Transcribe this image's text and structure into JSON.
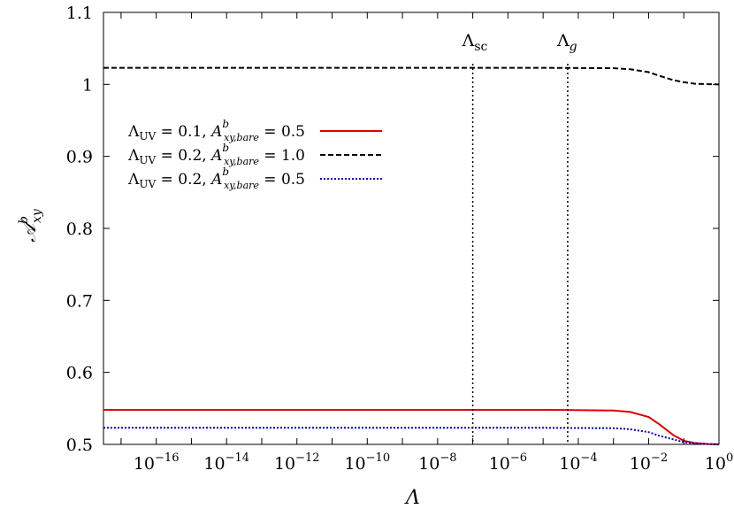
{
  "chart_data": {
    "type": "line",
    "xlabel": "Λ",
    "ylabel": "𝒜ᵇxy",
    "x_scale": "log",
    "xlim": [
      3.16e-18,
      1
    ],
    "ylim": [
      0.5,
      1.1
    ],
    "x_ticks": [
      {
        "base": "10",
        "exp": "−16"
      },
      {
        "base": "10",
        "exp": "−14"
      },
      {
        "base": "10",
        "exp": "−12"
      },
      {
        "base": "10",
        "exp": "−10"
      },
      {
        "base": "10",
        "exp": "−8"
      },
      {
        "base": "10",
        "exp": "−6"
      },
      {
        "base": "10",
        "exp": "−4"
      },
      {
        "base": "10",
        "exp": "−2"
      },
      {
        "base": "10",
        "exp": "0"
      }
    ],
    "y_ticks": [
      "0.5",
      "0.6",
      "0.7",
      "0.8",
      "0.9",
      "1",
      "1.1"
    ],
    "grid": false,
    "legend_position": "middle-left",
    "vertical_lines": [
      {
        "x": 1e-07,
        "label": "Λsc"
      },
      {
        "x": 5e-05,
        "label": "Λg"
      }
    ],
    "series": [
      {
        "name": "ΛUV = 0.1, Aᵇxy,bare = 0.5",
        "color": "#e00000",
        "dash": "solid",
        "x": [
          3.16e-18,
          1e-16,
          1e-12,
          1e-08,
          1e-05,
          0.001,
          0.003,
          0.01,
          0.02,
          0.05,
          0.1,
          0.2,
          0.5,
          1
        ],
        "y": [
          0.548,
          0.548,
          0.548,
          0.548,
          0.548,
          0.547,
          0.545,
          0.538,
          0.528,
          0.513,
          0.505,
          0.502,
          0.5005,
          0.5
        ]
      },
      {
        "name": "ΛUV = 0.2, Aᵇxy,bare = 1.0",
        "color": "#000000",
        "dash": "dashed",
        "x": [
          3.16e-18,
          1e-16,
          1e-12,
          1e-08,
          1e-05,
          0.001,
          0.003,
          0.01,
          0.02,
          0.05,
          0.1,
          0.2,
          0.5,
          1
        ],
        "y": [
          1.023,
          1.023,
          1.023,
          1.023,
          1.023,
          1.0225,
          1.021,
          1.017,
          1.012,
          1.006,
          1.003,
          1.001,
          1.0003,
          1.0
        ]
      },
      {
        "name": "ΛUV = 0.2, Aᵇxy,bare = 0.5",
        "color": "#0000cc",
        "dash": "dotted",
        "x": [
          3.16e-18,
          1e-16,
          1e-12,
          1e-08,
          1e-05,
          0.001,
          0.003,
          0.01,
          0.02,
          0.05,
          0.1,
          0.2,
          0.5,
          1
        ],
        "y": [
          0.523,
          0.523,
          0.523,
          0.523,
          0.523,
          0.5225,
          0.521,
          0.517,
          0.512,
          0.507,
          0.503,
          0.5015,
          0.5003,
          0.5
        ]
      }
    ]
  },
  "legend": [
    {
      "lambda": "Λ",
      "lambda_sub": "UV",
      "eq1": " = 0.1, ",
      "a": "A",
      "a_sup": "b",
      "a_sub": "xy,bare",
      "eq2": " = 0.5"
    },
    {
      "lambda": "Λ",
      "lambda_sub": "UV",
      "eq1": " = 0.2, ",
      "a": "A",
      "a_sup": "b",
      "a_sub": "xy,bare",
      "eq2": " = 1.0"
    },
    {
      "lambda": "Λ",
      "lambda_sub": "UV",
      "eq1": " = 0.2, ",
      "a": "A",
      "a_sup": "b",
      "a_sub": "xy,bare",
      "eq2": " = 0.5"
    }
  ],
  "annotations": {
    "sc": {
      "main": "Λ",
      "sub": "sc"
    },
    "g": {
      "main": "Λ",
      "sub": "g"
    }
  },
  "axes": {
    "xlabel": "Λ",
    "ylabel_main": "𝒜",
    "ylabel_sup": "b",
    "ylabel_sub": "xy"
  }
}
